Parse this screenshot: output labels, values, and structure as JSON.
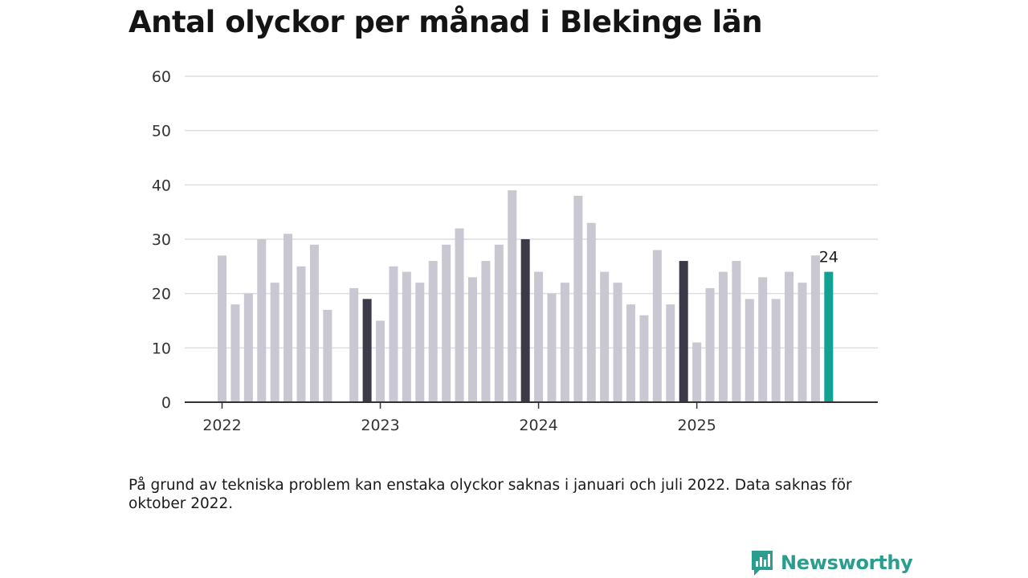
{
  "title": "Antal olyckor per månad i Blekinge län",
  "note": "På grund av tekniska problem kan enstaka olyckor saknas i januari och juli 2022. Data saknas för oktober 2022.",
  "brand": {
    "name": "Newsworthy",
    "icon": "newsworthy-logo-icon",
    "color": "#2a9d8f"
  },
  "colors": {
    "bar": "#c8c7d2",
    "highlight": "#3c3a48",
    "latest": "#12a193",
    "grid": "#dddddd",
    "axis": "#333333"
  },
  "chart_data": {
    "type": "bar",
    "title": "Antal olyckor per månad i Blekinge län",
    "xlabel": "",
    "ylabel": "",
    "ylim": [
      0,
      60
    ],
    "yticks": [
      0,
      10,
      20,
      30,
      40,
      50,
      60
    ],
    "x_tick_labels": [
      "2022",
      "2023",
      "2024",
      "2025"
    ],
    "grid": true,
    "legend": "none",
    "categories": [
      "2022-01",
      "2022-02",
      "2022-03",
      "2022-04",
      "2022-05",
      "2022-06",
      "2022-07",
      "2022-08",
      "2022-09",
      "2022-10",
      "2022-11",
      "2022-12",
      "2023-01",
      "2023-02",
      "2023-03",
      "2023-04",
      "2023-05",
      "2023-06",
      "2023-07",
      "2023-08",
      "2023-09",
      "2023-10",
      "2023-11",
      "2023-12",
      "2024-01",
      "2024-02",
      "2024-03",
      "2024-04",
      "2024-05",
      "2024-06",
      "2024-07",
      "2024-08",
      "2024-09",
      "2024-10",
      "2024-11",
      "2024-12",
      "2025-01",
      "2025-02",
      "2025-03",
      "2025-04",
      "2025-05",
      "2025-06",
      "2025-07",
      "2025-08",
      "2025-09",
      "2025-10",
      "2025-11",
      "2025-12"
    ],
    "values": [
      27,
      18,
      20,
      30,
      22,
      31,
      25,
      29,
      17,
      null,
      21,
      19,
      15,
      25,
      24,
      22,
      26,
      29,
      32,
      23,
      26,
      29,
      39,
      30,
      24,
      20,
      22,
      38,
      33,
      24,
      22,
      18,
      16,
      28,
      18,
      26,
      11,
      21,
      24,
      26,
      19,
      23,
      19,
      24,
      22,
      27,
      24,
      null
    ],
    "highlighted": [
      "2022-12",
      "2023-12",
      "2024-12"
    ],
    "latest": "2025-11",
    "latest_label": "24"
  }
}
